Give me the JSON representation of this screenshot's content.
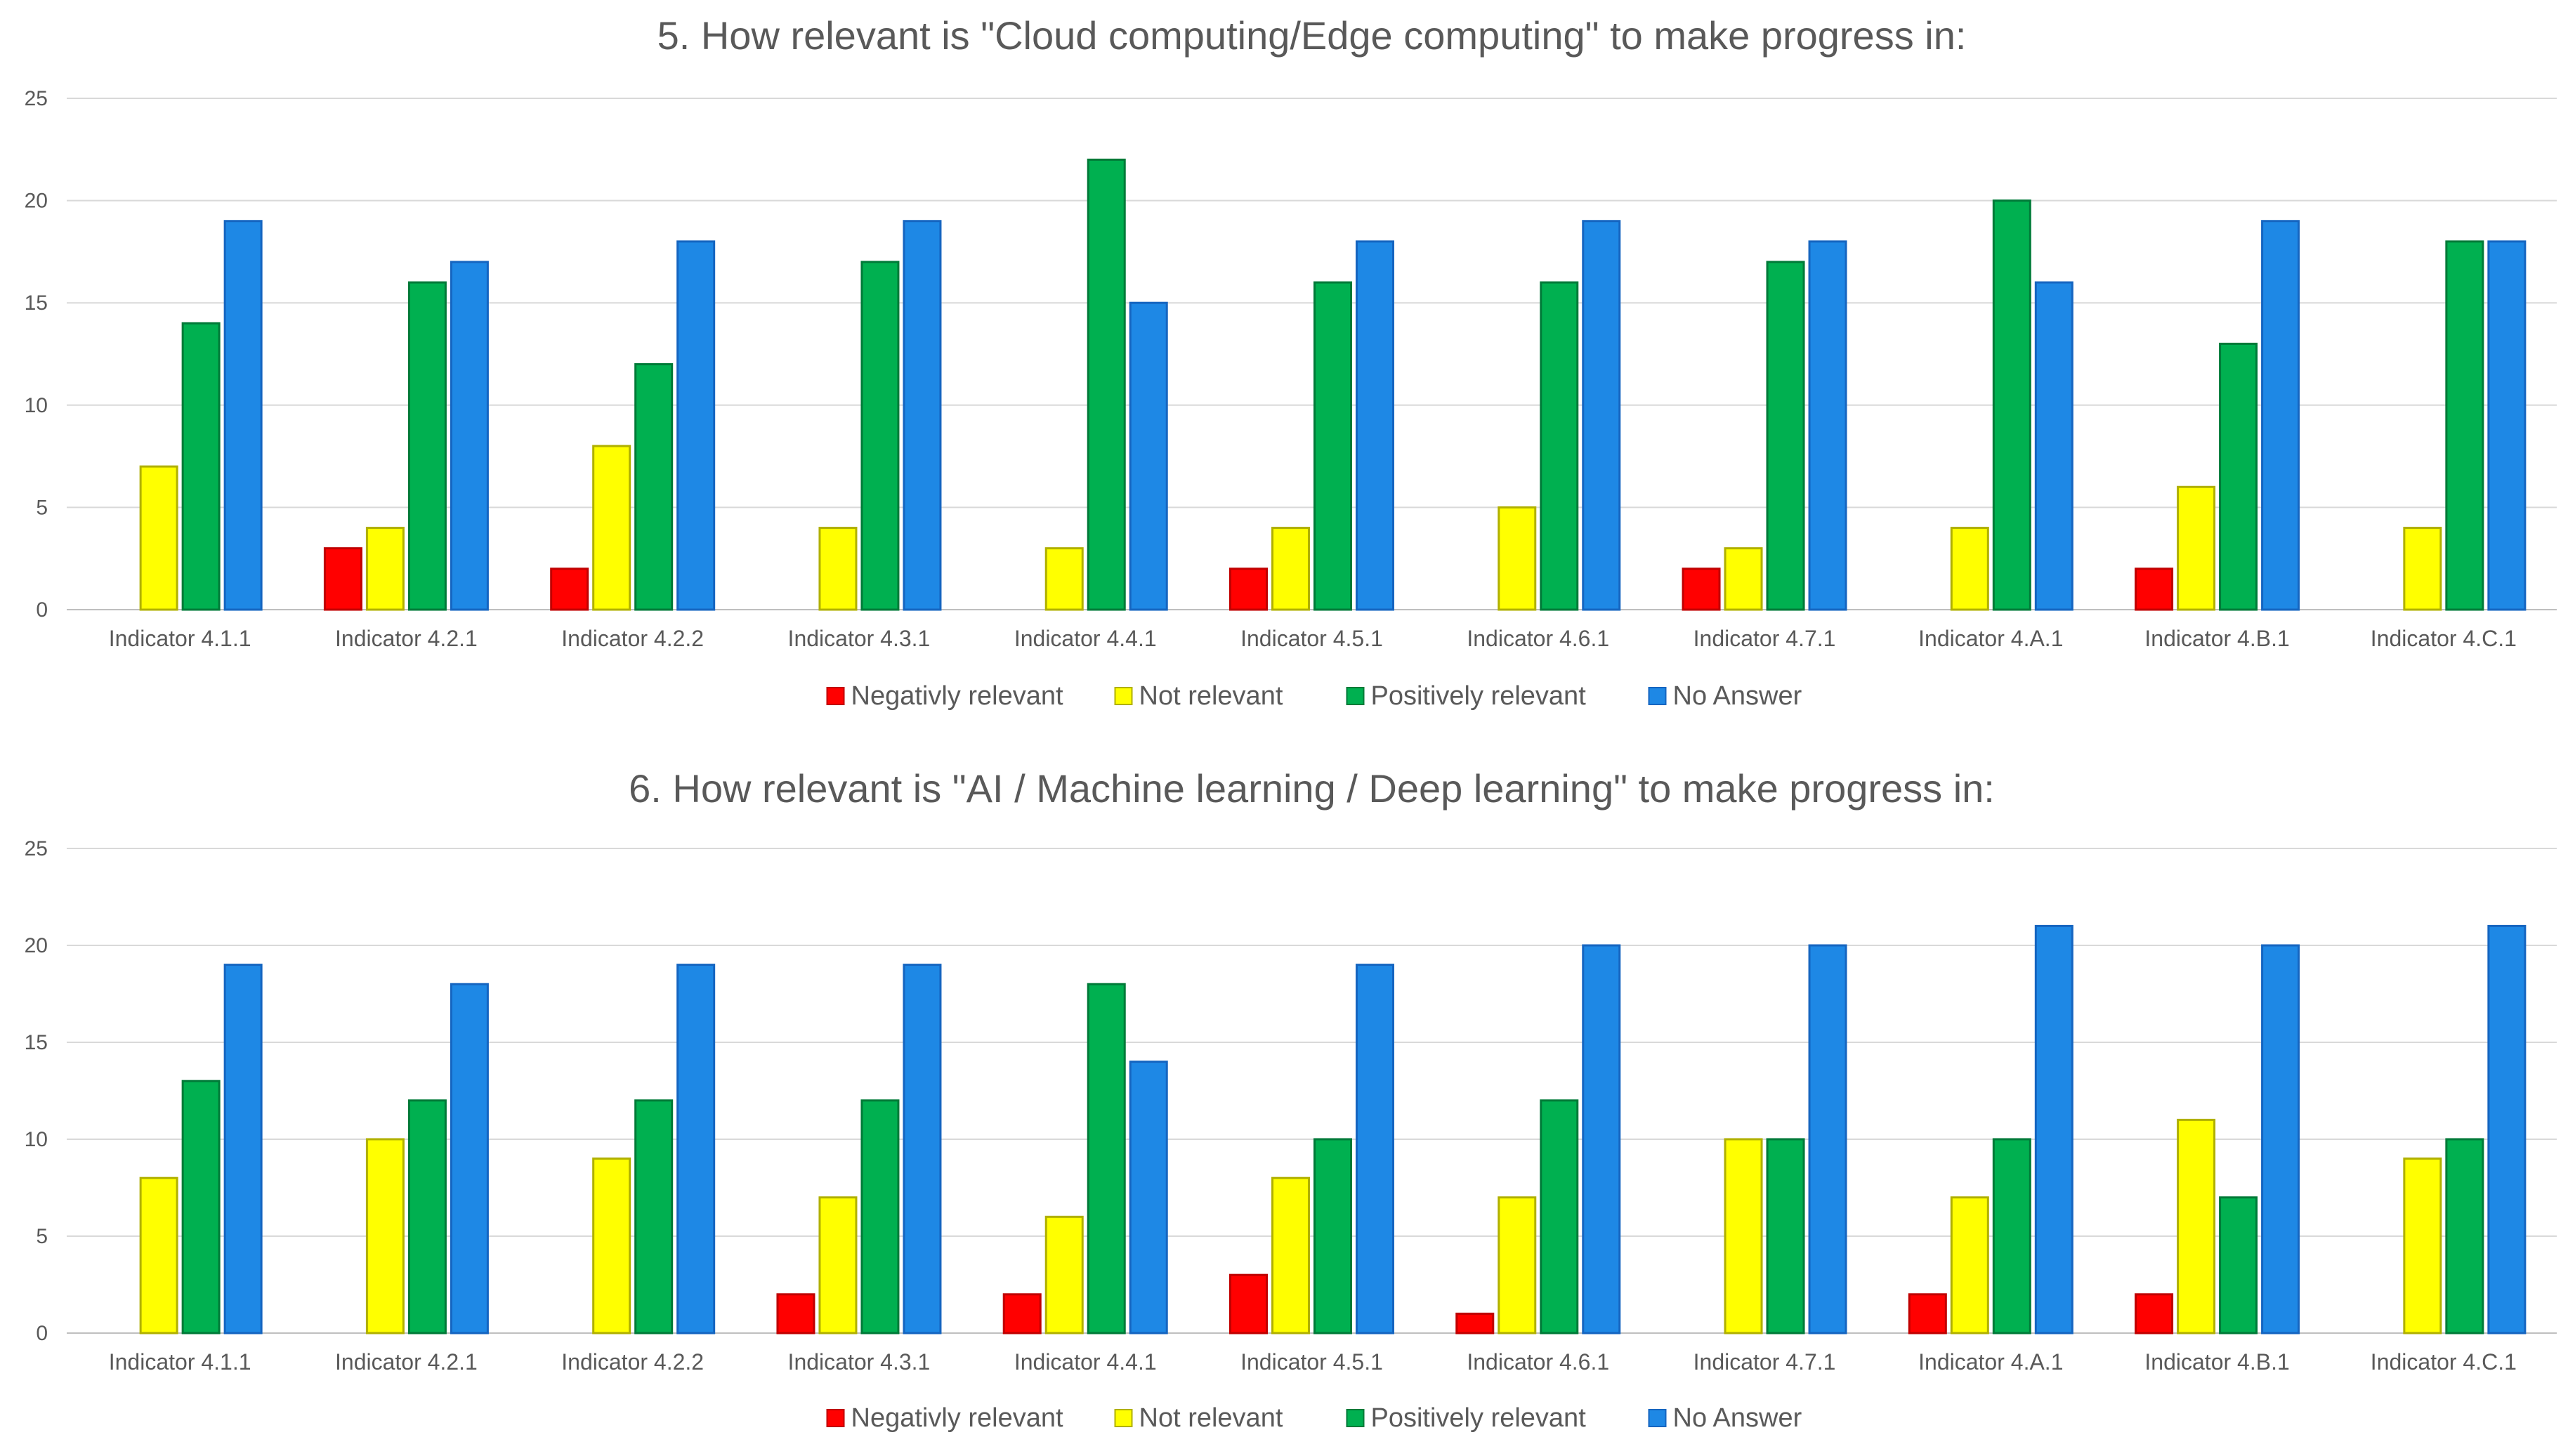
{
  "chart_data": [
    {
      "type": "bar",
      "title": "5. How relevant is \"Cloud computing/Edge computing\" to make progress in:",
      "xlabel": "",
      "ylabel": "",
      "ylim": [
        0,
        25
      ],
      "yticks": [
        0,
        5,
        10,
        15,
        20,
        25
      ],
      "grid": true,
      "legend_position": "bottom",
      "categories": [
        "Indicator 4.1.1",
        "Indicator 4.2.1",
        "Indicator 4.2.2",
        "Indicator 4.3.1",
        "Indicator 4.4.1",
        "Indicator 4.5.1",
        "Indicator 4.6.1",
        "Indicator 4.7.1",
        "Indicator 4.A.1",
        "Indicator 4.B.1",
        "Indicator 4.C.1"
      ],
      "series": [
        {
          "name": "Negativly relevant",
          "color": "#ff0000",
          "stroke": "#c00000",
          "values": [
            0,
            3,
            2,
            0,
            0,
            2,
            0,
            2,
            0,
            2,
            0
          ]
        },
        {
          "name": "Not relevant",
          "color": "#ffff00",
          "stroke": "#b0b000",
          "values": [
            7,
            4,
            8,
            4,
            3,
            4,
            5,
            3,
            4,
            6,
            4
          ]
        },
        {
          "name": "Positively relevant",
          "color": "#00b050",
          "stroke": "#007a38",
          "values": [
            14,
            16,
            12,
            17,
            22,
            16,
            16,
            17,
            20,
            13,
            18
          ]
        },
        {
          "name": "No Answer",
          "color": "#1e88e5",
          "stroke": "#1565c0",
          "values": [
            19,
            17,
            18,
            19,
            15,
            18,
            19,
            18,
            16,
            19,
            18
          ]
        }
      ]
    },
    {
      "type": "bar",
      "title": "6. How relevant is \"AI / Machine learning / Deep learning\" to make progress in:",
      "xlabel": "",
      "ylabel": "",
      "ylim": [
        0,
        25
      ],
      "yticks": [
        0,
        5,
        10,
        15,
        20,
        25
      ],
      "grid": true,
      "legend_position": "bottom",
      "categories": [
        "Indicator 4.1.1",
        "Indicator 4.2.1",
        "Indicator 4.2.2",
        "Indicator 4.3.1",
        "Indicator 4.4.1",
        "Indicator 4.5.1",
        "Indicator 4.6.1",
        "Indicator 4.7.1",
        "Indicator 4.A.1",
        "Indicator 4.B.1",
        "Indicator 4.C.1"
      ],
      "series": [
        {
          "name": "Negativly relevant",
          "color": "#ff0000",
          "stroke": "#c00000",
          "values": [
            0,
            0,
            0,
            2,
            2,
            3,
            1,
            0,
            2,
            2,
            0
          ]
        },
        {
          "name": "Not relevant",
          "color": "#ffff00",
          "stroke": "#b0b000",
          "values": [
            8,
            10,
            9,
            7,
            6,
            8,
            7,
            10,
            7,
            11,
            9
          ]
        },
        {
          "name": "Positively relevant",
          "color": "#00b050",
          "stroke": "#007a38",
          "values": [
            13,
            12,
            12,
            12,
            18,
            10,
            12,
            10,
            10,
            7,
            10
          ]
        },
        {
          "name": "No Answer",
          "color": "#1e88e5",
          "stroke": "#1565c0",
          "values": [
            19,
            18,
            19,
            19,
            14,
            19,
            20,
            20,
            21,
            20,
            21
          ]
        }
      ]
    }
  ]
}
